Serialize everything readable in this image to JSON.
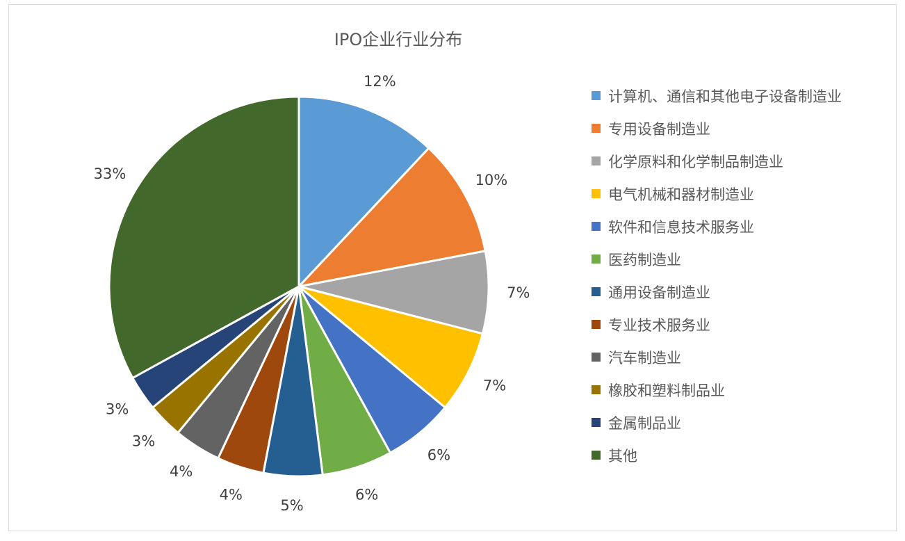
{
  "chart_data": {
    "type": "pie",
    "title": "IPO企业行业分布",
    "categories": [
      "计算机、通信和其他电子设备制造业",
      "专用设备制造业",
      "化学原料和化学制品制造业",
      "电气机械和器材制造业",
      "软件和信息技术服务业",
      "医药制造业",
      "通用设备制造业",
      "专业技术服务业",
      "汽车制造业",
      "橡胶和塑料制品业",
      "金属制品业",
      "其他"
    ],
    "values": [
      12,
      10,
      7,
      7,
      6,
      6,
      5,
      4,
      4,
      3,
      3,
      33
    ],
    "data_labels": [
      "12%",
      "10%",
      "7%",
      "7%",
      "6%",
      "6%",
      "5%",
      "4%",
      "4%",
      "3%",
      "3%",
      "33%"
    ],
    "colors": [
      "#5b9bd5",
      "#ed7d31",
      "#a5a5a5",
      "#ffc000",
      "#4472c4",
      "#70ad47",
      "#255e91",
      "#9e480e",
      "#636363",
      "#997300",
      "#264478",
      "#43682b"
    ],
    "legend_position": "right",
    "start_angle": "12 o'clock, clockwise"
  }
}
